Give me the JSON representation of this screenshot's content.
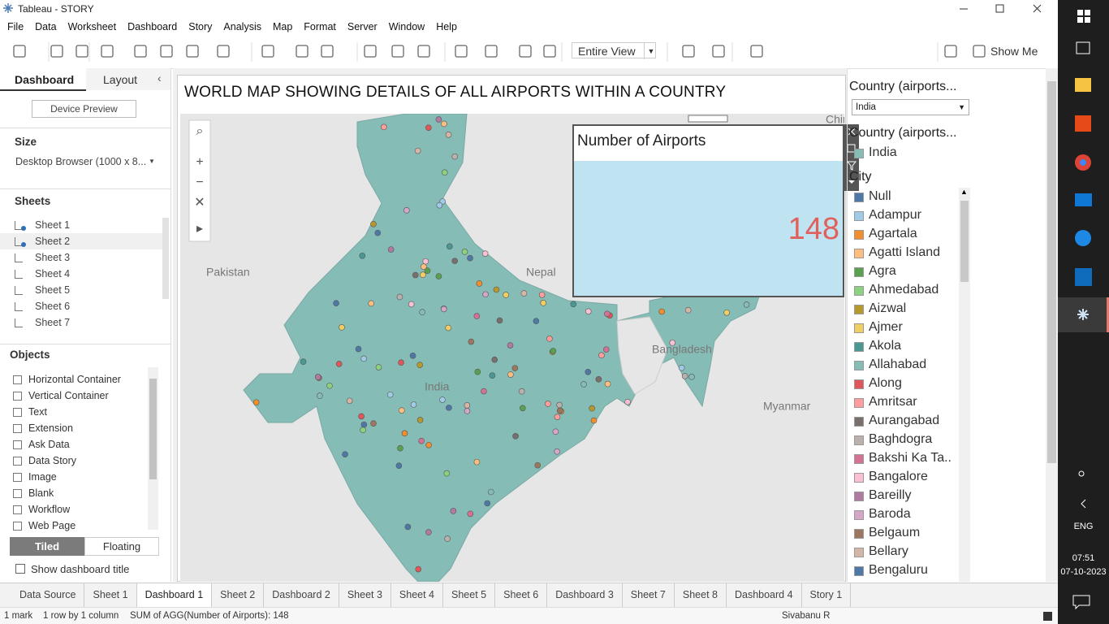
{
  "window": {
    "title": "Tableau - STORY"
  },
  "menu": [
    "File",
    "Data",
    "Worksheet",
    "Dashboard",
    "Story",
    "Analysis",
    "Map",
    "Format",
    "Server",
    "Window",
    "Help"
  ],
  "toolbar": {
    "fit": "Entire View",
    "show_me": "Show Me"
  },
  "left_panel": {
    "tabs": [
      "Dashboard",
      "Layout"
    ],
    "device_preview": "Device Preview",
    "size_heading": "Size",
    "size_value": "Desktop Browser (1000 x 8...",
    "sheets_heading": "Sheets",
    "sheets": [
      "Sheet 1",
      "Sheet 2",
      "Sheet 3",
      "Sheet 4",
      "Sheet 5",
      "Sheet 6",
      "Sheet 7"
    ],
    "objects_heading": "Objects",
    "objects": [
      "Horizontal Container",
      "Vertical Container",
      "Text",
      "Extension",
      "Ask Data",
      "Data Story",
      "Image",
      "Blank",
      "Workflow",
      "Web Page"
    ],
    "layout_modes": [
      "Tiled",
      "Floating"
    ],
    "show_title": "Show dashboard title"
  },
  "dashboard": {
    "title": "WORLD MAP SHOWING DETAILS OF ALL AIRPORTS WITHIN A COUNTRY",
    "map_labels": [
      "China",
      "Pakistan",
      "Nepal",
      "Bangladesh",
      "India",
      "Myanmar"
    ],
    "kpi": {
      "title": "Number of Airports",
      "value": 148
    }
  },
  "right_panel": {
    "filter_title": "Country (airports...",
    "filter_value": "India",
    "country_legend_title": "Country (airports...",
    "country_legend_items": [
      "India"
    ],
    "country_color": "#86bcb6",
    "city_legend_title": "City",
    "cities": [
      {
        "name": "Null",
        "color": "#4e79a7"
      },
      {
        "name": "Adampur",
        "color": "#a0cbe8"
      },
      {
        "name": "Agartala",
        "color": "#f28e2b"
      },
      {
        "name": "Agatti Island",
        "color": "#ffbe7d"
      },
      {
        "name": "Agra",
        "color": "#59a14f"
      },
      {
        "name": "Ahmedabad",
        "color": "#8cd17d"
      },
      {
        "name": "Aizwal",
        "color": "#b6992d"
      },
      {
        "name": "Ajmer",
        "color": "#f1ce63"
      },
      {
        "name": "Akola",
        "color": "#499894"
      },
      {
        "name": "Allahabad",
        "color": "#86bcb6"
      },
      {
        "name": "Along",
        "color": "#e15759"
      },
      {
        "name": "Amritsar",
        "color": "#ff9d9a"
      },
      {
        "name": "Aurangabad",
        "color": "#79706e"
      },
      {
        "name": "Baghdogra",
        "color": "#bab0ac"
      },
      {
        "name": "Bakshi Ka Ta..",
        "color": "#d37295"
      },
      {
        "name": "Bangalore",
        "color": "#fabfd2"
      },
      {
        "name": "Bareilly",
        "color": "#b07aa1"
      },
      {
        "name": "Baroda",
        "color": "#d4a6c8"
      },
      {
        "name": "Belgaum",
        "color": "#9d7660"
      },
      {
        "name": "Bellary",
        "color": "#d7b5a6"
      },
      {
        "name": "Bengaluru",
        "color": "#4e79a7"
      }
    ]
  },
  "sheet_tabs": [
    "Data Source",
    "Sheet 1",
    "Dashboard 1",
    "Sheet 2",
    "Dashboard 2",
    "Sheet 3",
    "Sheet 4",
    "Sheet 5",
    "Sheet 6",
    "Dashboard 3",
    "Sheet 7",
    "Sheet 8",
    "Dashboard 4",
    "Story 1"
  ],
  "status": {
    "marks": "1 mark",
    "shape": "1 row by 1 column",
    "sum": "SUM of AGG(Number of Airports): 148",
    "user": "Sivabanu R"
  },
  "taskbar": {
    "lang": "ENG",
    "time": "07:51",
    "date": "07-10-2023"
  }
}
